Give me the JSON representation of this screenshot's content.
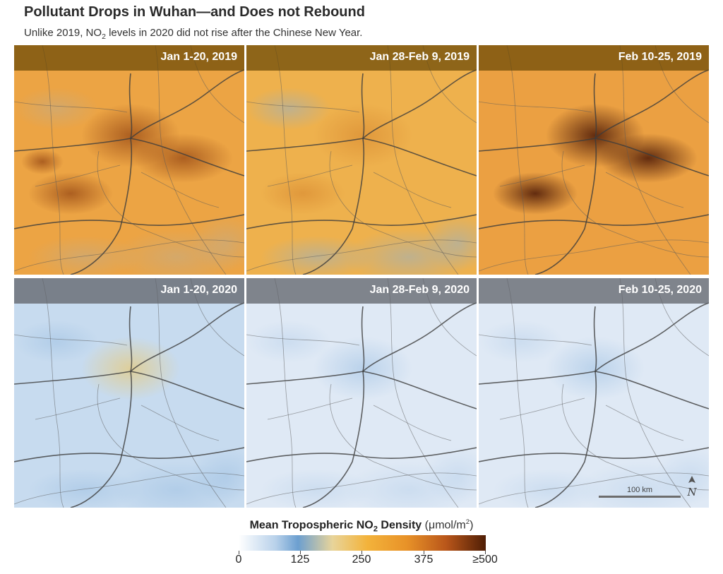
{
  "title": "Pollutant Drops in Wuhan—and Does not Rebound",
  "subtitle": {
    "part1": "Unlike 2019, NO",
    "sub": "2",
    "part2": " levels in 2020 did not rise after the Chinese New Year."
  },
  "panels": [
    {
      "label": "Jan 1-20, 2019",
      "year": 2019,
      "level": "high"
    },
    {
      "label": "Jan 28-Feb 9, 2019",
      "year": 2019,
      "level": "medium"
    },
    {
      "label": "Feb 10-25, 2019",
      "year": 2019,
      "level": "very-high"
    },
    {
      "label": "Jan 1-20, 2020",
      "year": 2020,
      "level": "low-medium"
    },
    {
      "label": "Jan 28-Feb 9, 2020",
      "year": 2020,
      "level": "low"
    },
    {
      "label": "Feb 10-25, 2020",
      "year": 2020,
      "level": "low"
    }
  ],
  "scale_bar": {
    "label": "100 km"
  },
  "north_arrow": {
    "icon": "north-arrow-icon"
  },
  "legend": {
    "title_part1": "Mean Tropospheric NO",
    "title_sub": "2",
    "title_part2": " Density",
    "unit_part1": "(μmol/m",
    "unit_sup": "2",
    "unit_part2": ")",
    "ticks": [
      "0",
      "125",
      "250",
      "375",
      "≥500"
    ],
    "colors": [
      "#ffffff",
      "#6c9fd0",
      "#f3b33b",
      "#e89228",
      "#4f1e05"
    ]
  }
}
